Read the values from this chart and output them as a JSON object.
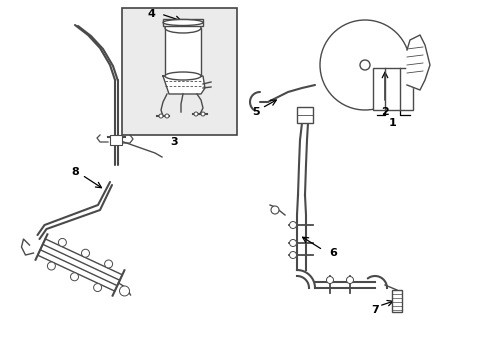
{
  "bg_color": "#ffffff",
  "line_color": "#4a4a4a",
  "label_color": "#000000",
  "box_fill": "#ebebeb",
  "box_edge": "#444444",
  "fig_width": 4.89,
  "fig_height": 3.6,
  "dpi": 100
}
